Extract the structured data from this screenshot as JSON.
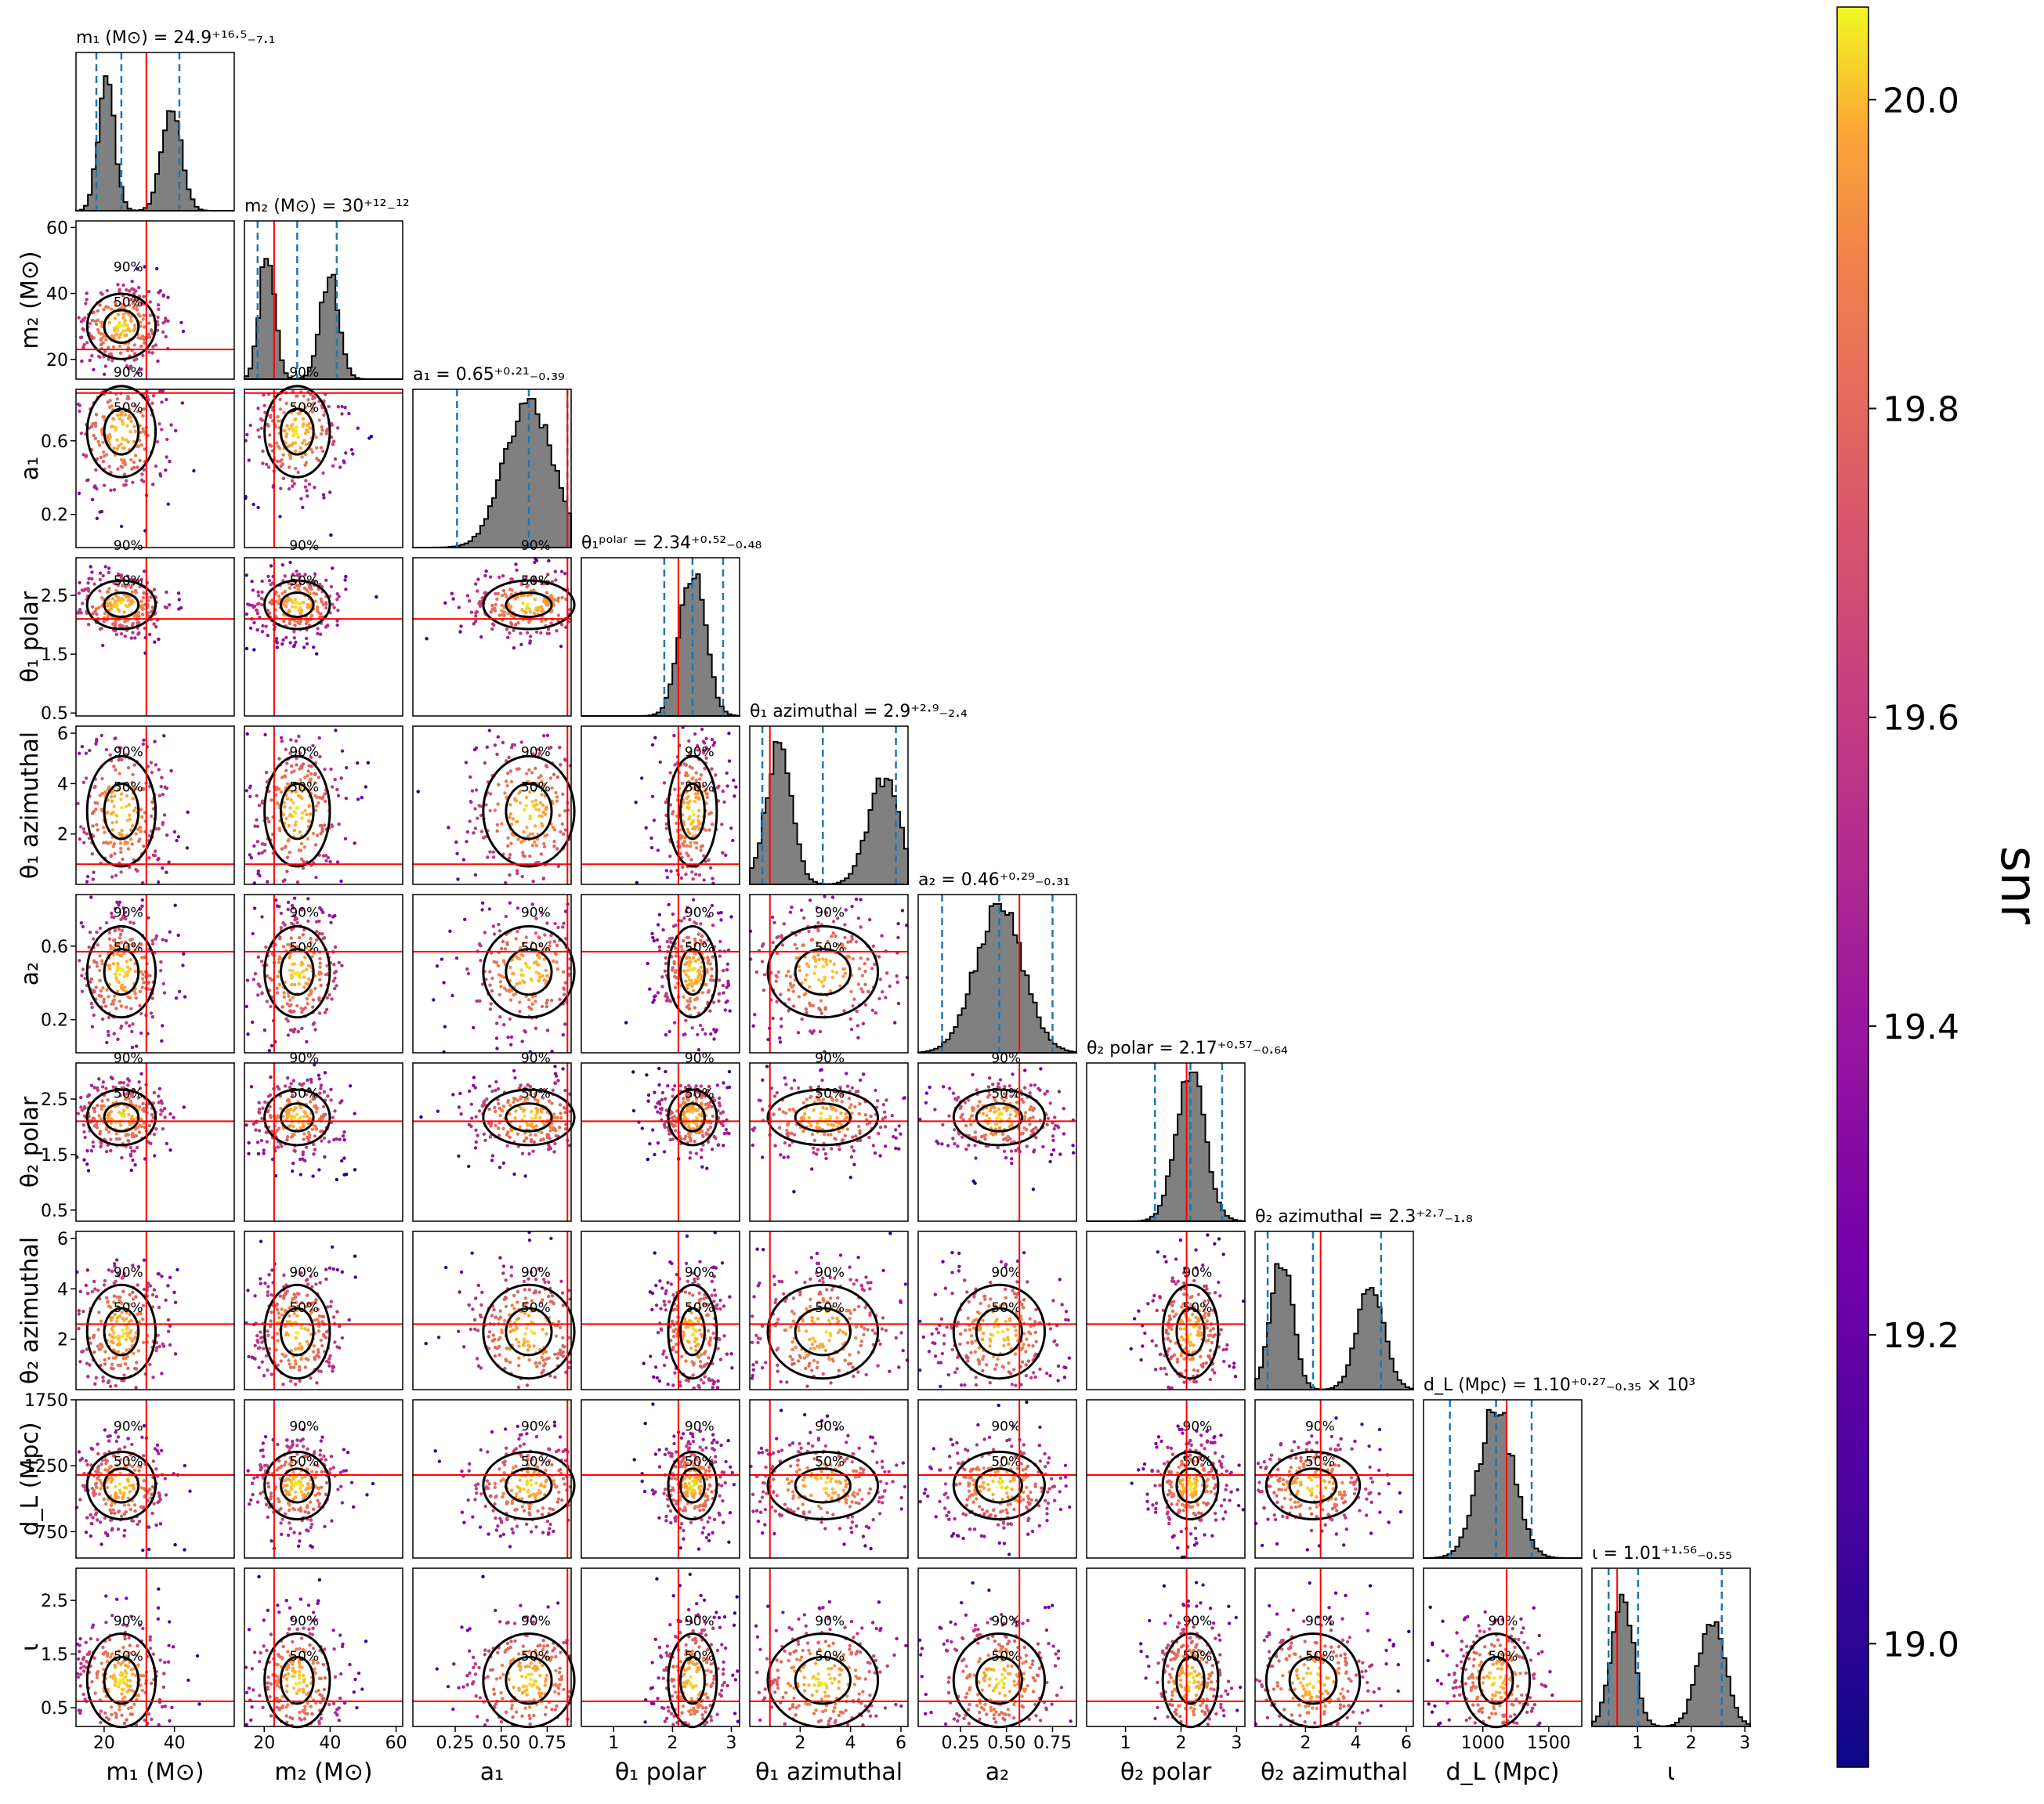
{
  "chart_data": {
    "type": "corner",
    "parameters": [
      {
        "key": "m1",
        "title": "m₁ (M⊙) = 24.9⁺¹⁶·⁵₋₇.₁",
        "xlabel": "m₁ (M⊙)",
        "ylabel": "",
        "range": [
          12,
          57
        ],
        "ticks": [
          20,
          40
        ],
        "ticklabels": [
          "20",
          "40"
        ],
        "truth": 32,
        "quantiles": [
          17.8,
          24.9,
          41.4
        ]
      },
      {
        "key": "m2",
        "title": "m₂ (M⊙) = 30⁺¹²₋¹²",
        "xlabel": "m₂ (M⊙)",
        "ylabel": "m₂ (M⊙)",
        "range": [
          14,
          62
        ],
        "ticks": [
          20,
          40,
          60
        ],
        "ticklabels": [
          "20",
          "40",
          "60"
        ],
        "truth": 23,
        "quantiles": [
          18,
          30,
          42
        ]
      },
      {
        "key": "a1",
        "title": "a₁ = 0.65⁺⁰·²¹₋₀.₃₉",
        "xlabel": "a₁",
        "ylabel": "a₁",
        "range": [
          0.02,
          0.88
        ],
        "ticks": [
          0.25,
          0.5,
          0.75
        ],
        "ticklabels": [
          "0.25",
          "0.50",
          "0.75"
        ],
        "yticks": [
          0.2,
          0.6
        ],
        "yticklabels": [
          "0.2",
          "0.6"
        ],
        "truth": 0.86,
        "quantiles": [
          0.26,
          0.65,
          0.86
        ]
      },
      {
        "key": "th1",
        "title": "θ₁ᵖᵒˡᵃʳ = 2.34⁺⁰·⁵²₋₀.₄₈",
        "xlabel": "θ₁ polar",
        "ylabel": "θ₁ polar",
        "range": [
          0.45,
          3.14
        ],
        "ticks": [
          1,
          2,
          3
        ],
        "ticklabels": [
          "1",
          "2",
          "3"
        ],
        "yticks": [
          0.5,
          1.5,
          2.5
        ],
        "yticklabels": [
          "0.5",
          "1.5",
          "2.5"
        ],
        "truth": 2.1,
        "quantiles": [
          1.86,
          2.34,
          2.86
        ]
      },
      {
        "key": "ph1",
        "title": "θ₁ azimuthal = 2.9⁺²·⁹₋₂.₄",
        "xlabel": "θ₁ azimuthal",
        "ylabel": "θ₁ azimuthal",
        "range": [
          0,
          6.28
        ],
        "ticks": [
          2,
          4,
          6
        ],
        "ticklabels": [
          "2",
          "4",
          "6"
        ],
        "truth": 0.8,
        "quantiles": [
          0.5,
          2.9,
          5.8
        ]
      },
      {
        "key": "a2",
        "title": "a₂ = 0.46⁺⁰·²⁹₋₀.₃₁",
        "xlabel": "a₂",
        "ylabel": "a₂",
        "range": [
          0.02,
          0.88
        ],
        "ticks": [
          0.25,
          0.5,
          0.75
        ],
        "ticklabels": [
          "0.25",
          "0.50",
          "0.75"
        ],
        "yticks": [
          0.2,
          0.6
        ],
        "yticklabels": [
          "0.2",
          "0.6"
        ],
        "truth": 0.57,
        "quantiles": [
          0.15,
          0.46,
          0.75
        ]
      },
      {
        "key": "th2",
        "title": "θ₂ polar = 2.17⁺⁰·⁵⁷₋₀.₆₄",
        "xlabel": "θ₂ polar",
        "ylabel": "θ₂ polar",
        "range": [
          0.3,
          3.15
        ],
        "ticks": [
          1,
          2,
          3
        ],
        "ticklabels": [
          "1",
          "2",
          "3"
        ],
        "yticks": [
          0.5,
          1.5,
          2.5
        ],
        "yticklabels": [
          "0.5",
          "1.5",
          "2.5"
        ],
        "truth": 2.1,
        "quantiles": [
          1.53,
          2.17,
          2.74
        ]
      },
      {
        "key": "ph2",
        "title": "θ₂ azimuthal = 2.3⁺²·⁷₋₁.₈",
        "xlabel": "θ₂ azimuthal",
        "ylabel": "θ₂ azimuthal",
        "range": [
          0,
          6.28
        ],
        "ticks": [
          2,
          4,
          6
        ],
        "ticklabels": [
          "2",
          "4",
          "6"
        ],
        "yticks": [
          2,
          4,
          6
        ],
        "yticklabels": [
          "2",
          "4",
          "6"
        ],
        "truth": 2.6,
        "quantiles": [
          0.5,
          2.3,
          5.0
        ]
      },
      {
        "key": "dl",
        "title": "d_L (Mpc) = 1.10⁺⁰·²⁷₋₀.₃₅ × 10³",
        "xlabel": "d_L (Mpc)",
        "ylabel": "d_L (Mpc)",
        "range": [
          550,
          1750
        ],
        "ticks": [
          1000,
          1500
        ],
        "ticklabels": [
          "1000",
          "1500"
        ],
        "yticks": [
          750,
          1250,
          1750
        ],
        "yticklabels": [
          "750",
          "1250",
          "1750"
        ],
        "truth": 1180,
        "quantiles": [
          750,
          1100,
          1370
        ]
      },
      {
        "key": "iota",
        "title": "ι = 1.01⁺¹·⁵⁶₋₀.₅₅",
        "xlabel": "ι",
        "ylabel": "ι",
        "range": [
          0.15,
          3.1
        ],
        "ticks": [
          1,
          2,
          3
        ],
        "ticklabels": [
          "1",
          "2",
          "3"
        ],
        "yticks": [
          0.5,
          1.5,
          2.5
        ],
        "yticklabels": [
          "0.5",
          "1.5",
          "2.5"
        ],
        "truth": 0.62,
        "quantiles": [
          0.46,
          1.01,
          2.57
        ]
      }
    ],
    "contour_levels": [
      "50%",
      "90%"
    ],
    "colorbar": {
      "label": "snr",
      "range": [
        18.92,
        20.06
      ],
      "ticks": [
        19.0,
        19.2,
        19.4,
        19.6,
        19.8,
        20.0
      ],
      "ticklabels": [
        "19.0",
        "19.2",
        "19.4",
        "19.6",
        "19.8",
        "20.0"
      ],
      "colormap": "plasma"
    },
    "colors": {
      "histogram": "#808080",
      "truth": "#ff0000",
      "quantile": "#1f77b4",
      "contour": "#000000"
    }
  }
}
